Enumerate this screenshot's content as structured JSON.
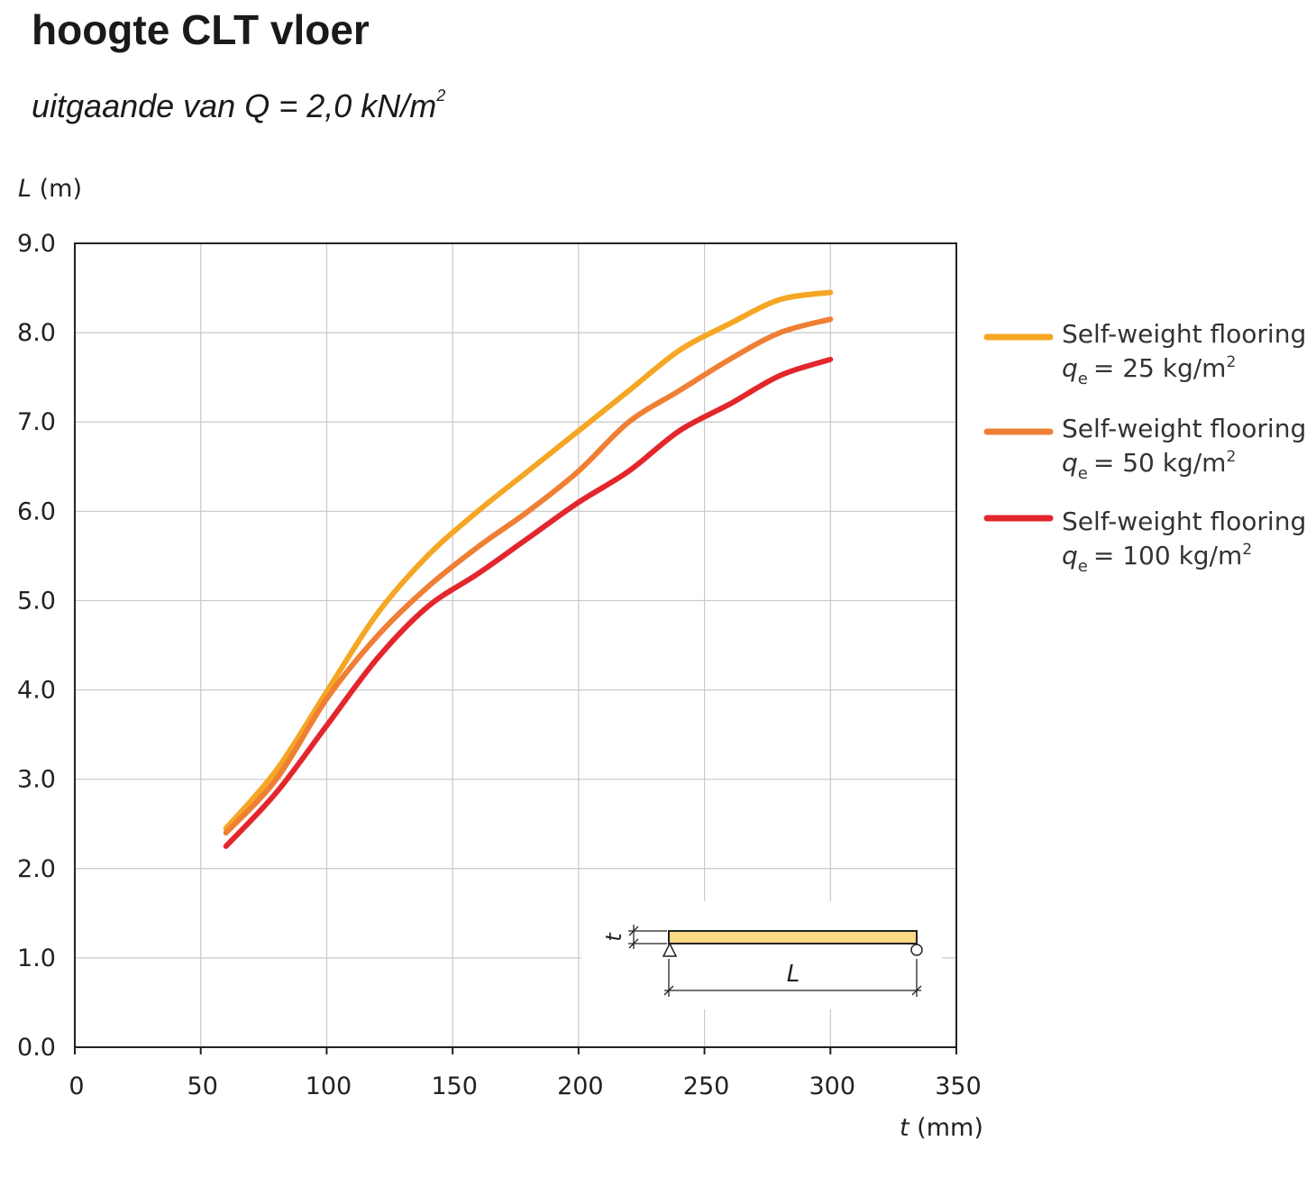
{
  "header": {
    "title": "hoogte CLT vloer",
    "subtitle_main": "uitgaande van Q = 2,0 kN/m",
    "subtitle_sup": "2"
  },
  "chart_data": {
    "type": "line",
    "xlabel": {
      "symbol": "t",
      "unit": " (mm)"
    },
    "ylabel": {
      "symbol": "L",
      "unit": " (m)"
    },
    "xlim": [
      0,
      350
    ],
    "ylim": [
      0,
      9
    ],
    "x_ticks": [
      "0",
      "50",
      "100",
      "150",
      "200",
      "250",
      "300",
      "350"
    ],
    "y_ticks": [
      "0.0",
      "1.0",
      "2.0",
      "3.0",
      "4.0",
      "5.0",
      "6.0",
      "7.0",
      "8.0",
      "9.0"
    ],
    "grid": true,
    "legend_position": "right",
    "x": [
      60,
      80,
      100,
      120,
      140,
      160,
      180,
      200,
      220,
      240,
      260,
      280,
      300
    ],
    "series": [
      {
        "name": "Self-weight flooring",
        "qe_label": "= 25 kg/m",
        "color": "#f5a623",
        "values": [
          2.45,
          3.1,
          3.98,
          4.85,
          5.5,
          6.0,
          6.45,
          6.9,
          7.35,
          7.8,
          8.1,
          8.37,
          8.45
        ]
      },
      {
        "name": "Self-weight flooring",
        "qe_label": "= 50 kg/m",
        "color": "#ef7f35",
        "values": [
          2.4,
          3.0,
          3.9,
          4.6,
          5.15,
          5.6,
          6.0,
          6.45,
          7.0,
          7.35,
          7.7,
          8.0,
          8.15
        ]
      },
      {
        "name": "Self-weight flooring",
        "qe_label": "= 100 kg/m",
        "color": "#e3262c",
        "values": [
          2.25,
          2.85,
          3.6,
          4.35,
          4.93,
          5.3,
          5.7,
          6.1,
          6.45,
          6.9,
          7.2,
          7.52,
          7.7
        ]
      }
    ],
    "inset": {
      "span_symbol": "L",
      "thickness_symbol": "t"
    }
  }
}
